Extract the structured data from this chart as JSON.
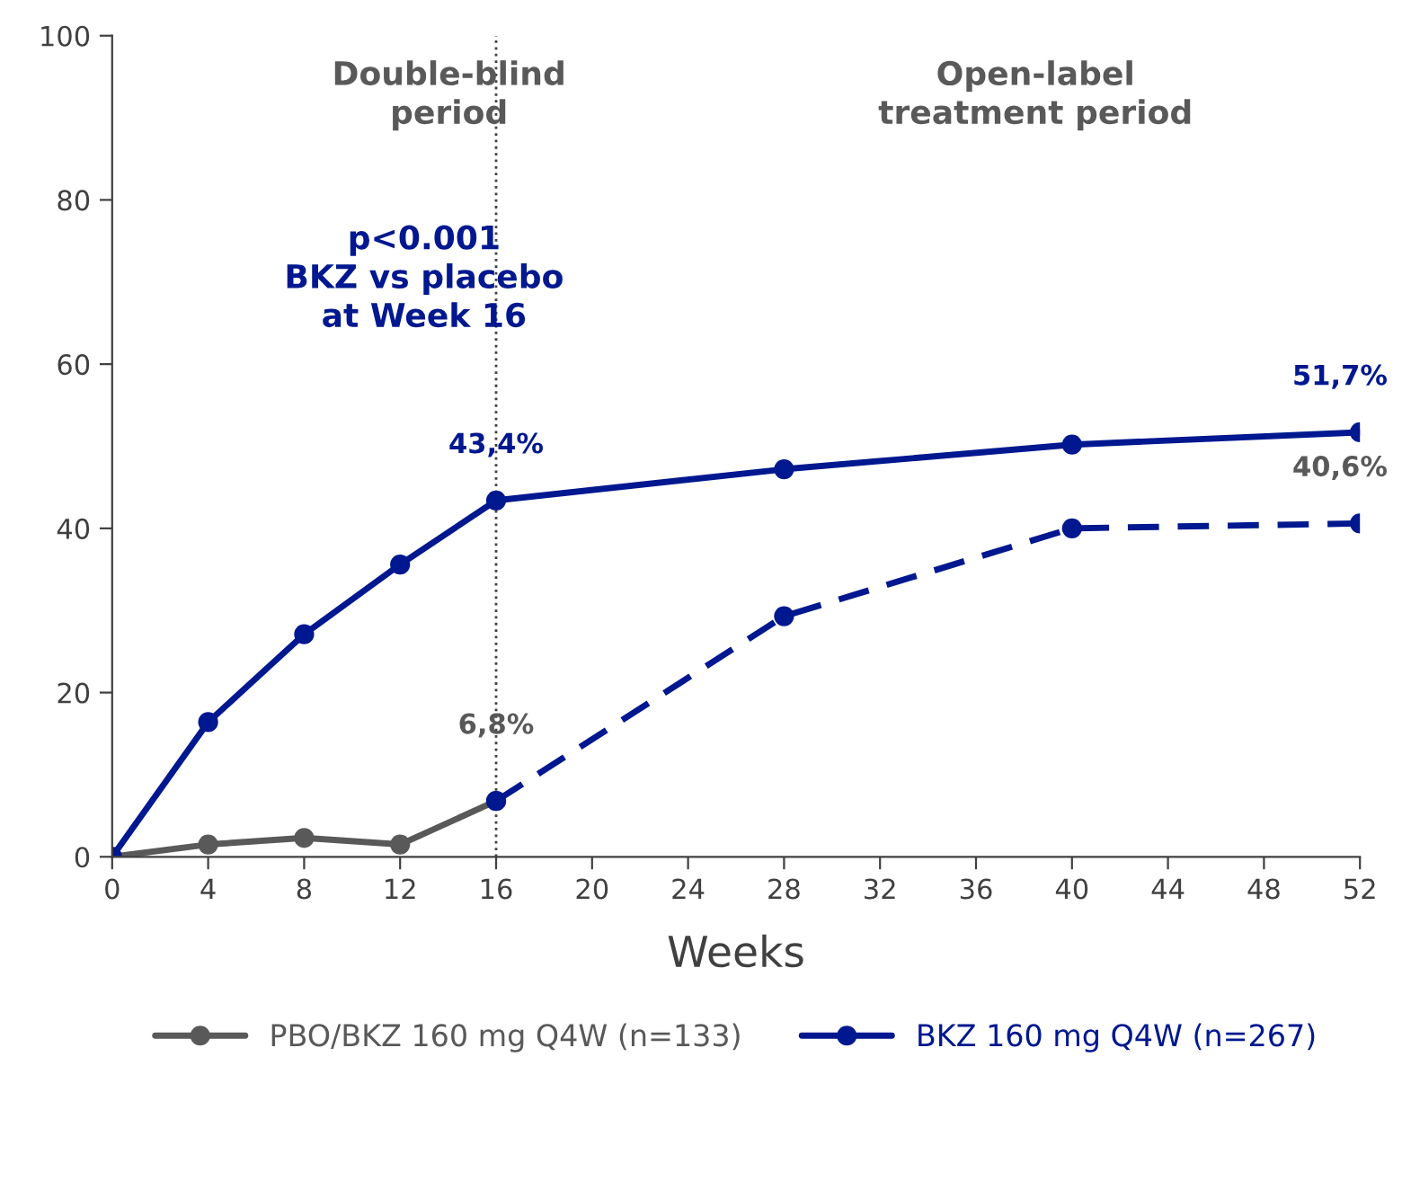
{
  "chart_data": {
    "type": "line",
    "xlabel": "Weeks",
    "xlim": [
      0,
      52
    ],
    "xticks": [
      0,
      4,
      8,
      12,
      16,
      20,
      24,
      28,
      32,
      36,
      40,
      44,
      48,
      52
    ],
    "ylim": [
      0,
      100
    ],
    "yticks": [
      0,
      20,
      40,
      60,
      80,
      100
    ],
    "grid": false,
    "legend": "bottom",
    "marker": "circle",
    "series": [
      {
        "name": "PBO/BKZ 160 mg Q4W (n=133)",
        "color": "#595959",
        "line_style": "solid",
        "x": [
          0,
          4,
          8,
          12,
          16
        ],
        "values": [
          0,
          1.5,
          2.3,
          1.5,
          6.8
        ],
        "value_labels": [
          null,
          null,
          null,
          null,
          "6,8%"
        ]
      },
      {
        "color": "#00188f",
        "line_style": "dashed",
        "x": [
          16,
          28,
          40,
          52
        ],
        "values": [
          6.8,
          29.3,
          40.0,
          40.6
        ],
        "value_labels": [
          null,
          null,
          null,
          "40,6%"
        ]
      },
      {
        "name": "BKZ 160 mg Q4W (n=267)",
        "color": "#00188f",
        "line_style": "solid",
        "x": [
          0,
          4,
          8,
          12,
          16,
          28,
          40,
          52
        ],
        "values": [
          0,
          16.4,
          27.1,
          35.6,
          43.4,
          47.2,
          50.2,
          51.7
        ],
        "value_labels": [
          null,
          null,
          null,
          null,
          "43,4%",
          null,
          null,
          "51,7%"
        ]
      }
    ],
    "ref_lines": [
      {
        "axis": "x",
        "value": 16,
        "color": "#404040",
        "line_style": "dotted"
      }
    ],
    "annotations": [
      "Double-blind\nperiod",
      "Open-label\ntreatment period",
      "p<0.001\nBKZ vs placebo\nat Week 16"
    ]
  }
}
